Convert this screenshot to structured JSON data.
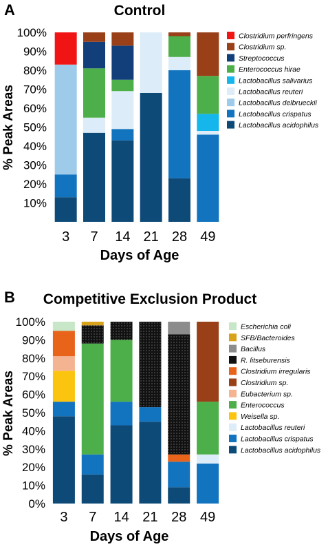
{
  "chart_data": [
    {
      "panel": "A",
      "type": "bar",
      "stacked": true,
      "title": "Control",
      "xlabel": "Days of Age",
      "ylabel": "% Peak Areas",
      "ylim": [
        0,
        100
      ],
      "ytick_labels": [
        "10%",
        "20%",
        "30%",
        "40%",
        "50%",
        "60%",
        "70%",
        "80%",
        "90%",
        "100%"
      ],
      "categories": [
        "3",
        "7",
        "14",
        "21",
        "28",
        "49"
      ],
      "series": [
        {
          "name": "Lactobacillus acidophilus",
          "color": "#0d4a78",
          "values": [
            13,
            47,
            43,
            68,
            23,
            0
          ]
        },
        {
          "name": "Lactobacillus crispatus",
          "color": "#1273bf",
          "values": [
            12,
            0,
            6,
            0,
            57,
            46
          ]
        },
        {
          "name": "Lactobacillus delbrueckii",
          "color": "#9dcbe9",
          "values": [
            58,
            0,
            0,
            0,
            0,
            0
          ]
        },
        {
          "name": "Lactobacillus reuteri",
          "color": "#dcecf8",
          "values": [
            0,
            8,
            20,
            32,
            7,
            2
          ]
        },
        {
          "name": "Lactobacillus salivarius",
          "color": "#14b6ec",
          "values": [
            0,
            0,
            0,
            0,
            0,
            9
          ]
        },
        {
          "name": "Enterococcus hirae",
          "color": "#4daf49",
          "values": [
            0,
            26,
            6,
            0,
            11,
            20
          ]
        },
        {
          "name": "Streptococcus",
          "color": "#123f7a",
          "values": [
            0,
            14,
            18,
            0,
            0,
            0
          ]
        },
        {
          "name": "Clostridium sp.",
          "color": "#9a4018",
          "values": [
            0,
            5,
            7,
            0,
            2,
            23
          ]
        },
        {
          "name": "Clostridium perfringens",
          "color": "#f01414",
          "values": [
            17,
            0,
            0,
            0,
            0,
            0
          ]
        }
      ],
      "legend": [
        {
          "name": "Clostridium perfringens",
          "color": "#f01414"
        },
        {
          "name": "Clostridium sp.",
          "color": "#9a4018"
        },
        {
          "name": "Streptococcus",
          "color": "#123f7a"
        },
        {
          "name": "Enterococcus hirae",
          "color": "#4daf49"
        },
        {
          "name": "Lactobacillus salivarius",
          "color": "#14b6ec"
        },
        {
          "name": "Lactobacillus reuteri",
          "color": "#dcecf8"
        },
        {
          "name": "Lactobacillus delbrueckii",
          "color": "#9dcbe9"
        },
        {
          "name": "Lactobacillus crispatus",
          "color": "#1273bf"
        },
        {
          "name": "Lactobacillus acidophilus",
          "color": "#0d4a78"
        }
      ]
    },
    {
      "panel": "B",
      "type": "bar",
      "stacked": true,
      "title": "Competitive Exclusion Product",
      "xlabel": "Days of Age",
      "ylabel": "% Peak Areas",
      "ylim": [
        0,
        100
      ],
      "ytick_labels": [
        "0%",
        "10%",
        "20%",
        "30%",
        "40%",
        "50%",
        "60%",
        "70%",
        "80%",
        "90%",
        "100%"
      ],
      "categories": [
        "3",
        "7",
        "14",
        "21",
        "28",
        "49"
      ],
      "series": [
        {
          "name": "Lactobacillus acidophilus",
          "color": "#0d4a78",
          "values": [
            48,
            16,
            43,
            45,
            9,
            0
          ]
        },
        {
          "name": "Lactobacillus crispatus",
          "color": "#1273bf",
          "values": [
            8,
            11,
            13,
            8,
            14,
            22
          ]
        },
        {
          "name": "Lactobacillus reuteri",
          "color": "#dcecf8",
          "values": [
            0,
            0,
            0,
            0,
            0,
            5
          ]
        },
        {
          "name": "Weisella sp.",
          "color": "#fbc40f",
          "values": [
            17,
            0,
            0,
            0,
            0,
            0
          ]
        },
        {
          "name": "Enterococcus",
          "color": "#4daf49",
          "values": [
            0,
            61,
            34,
            0,
            0,
            29
          ]
        },
        {
          "name": "Eubacterium sp.",
          "color": "#f5b491",
          "values": [
            8,
            0,
            0,
            0,
            0,
            0
          ]
        },
        {
          "name": "Clostridium sp.",
          "color": "#9a4018",
          "values": [
            0,
            0,
            0,
            0,
            0,
            44
          ]
        },
        {
          "name": "Clostridium irregularis",
          "color": "#e8641a",
          "values": [
            14,
            0,
            0,
            0,
            4,
            0
          ]
        },
        {
          "name": "R. litseburensis",
          "color": "#111111",
          "values": [
            0,
            10,
            10,
            47,
            66,
            0
          ]
        },
        {
          "name": "Bacillus",
          "color": "#8c8c8c",
          "values": [
            0,
            0,
            0,
            0,
            7,
            0
          ]
        },
        {
          "name": "SFB/Bacteroides",
          "color": "#d9a21b",
          "values": [
            0,
            2,
            0,
            0,
            0,
            0
          ]
        },
        {
          "name": "Escherichia coli",
          "color": "#c8e6c8",
          "values": [
            5,
            0,
            0,
            0,
            0,
            0
          ]
        }
      ],
      "legend": [
        {
          "name": "Escherichia coli",
          "color": "#c8e6c8"
        },
        {
          "name": "SFB/Bacteroides",
          "color": "#d9a21b"
        },
        {
          "name": "Bacillus",
          "color": "#8c8c8c"
        },
        {
          "name": "R. litseburensis",
          "color": "#111111"
        },
        {
          "name": "Clostridium irregularis",
          "color": "#e8641a"
        },
        {
          "name": "Clostridium sp.",
          "color": "#9a4018"
        },
        {
          "name": "Eubacterium sp.",
          "color": "#f5b491"
        },
        {
          "name": "Enterococcus",
          "color": "#4daf49"
        },
        {
          "name": "Weisella sp.",
          "color": "#fbc40f"
        },
        {
          "name": "Lactobacillus reuteri",
          "color": "#dcecf8"
        },
        {
          "name": "Lactobacillus crispatus",
          "color": "#1273bf"
        },
        {
          "name": "Lactobacillus acidophilus",
          "color": "#0d4a78"
        }
      ]
    }
  ]
}
